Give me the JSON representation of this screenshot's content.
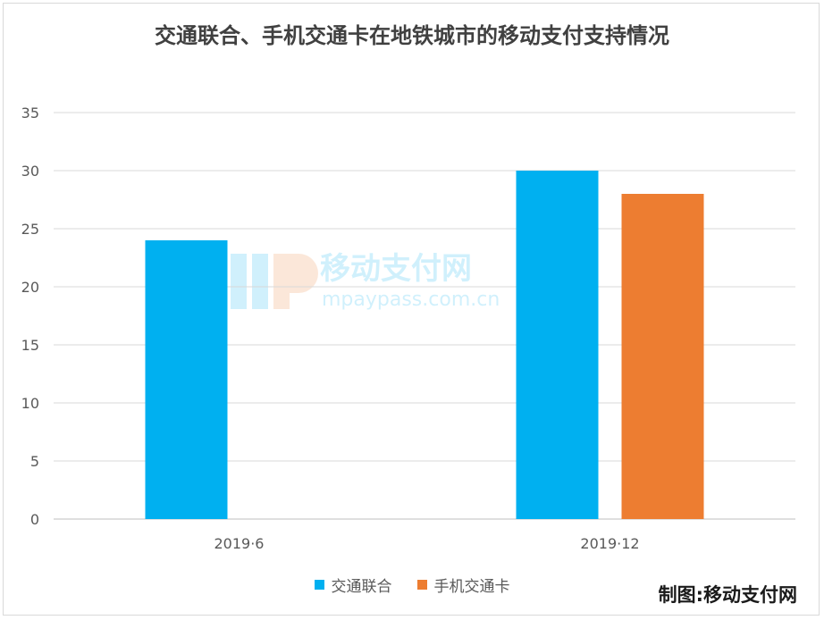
{
  "chart_data": {
    "type": "bar",
    "title": "交通联合、手机交通卡在地铁城市的移动支付支持情况",
    "categories": [
      "2019·6",
      "2019·12"
    ],
    "series": [
      {
        "name": "交通联合",
        "values": [
          24,
          30
        ],
        "color": "#00b0f0"
      },
      {
        "name": "手机交通卡",
        "values": [
          0,
          28
        ],
        "color": "#ed7d31"
      }
    ],
    "ylim": [
      0,
      35
    ],
    "yticks": [
      0,
      5,
      10,
      15,
      20,
      25,
      30,
      35
    ],
    "grid": true,
    "legend_position": "bottom",
    "xlabel": "",
    "ylabel": ""
  },
  "watermark": {
    "name": "移动支付网",
    "url": "mpaypass.com.cn"
  },
  "credit": "制图:移动支付网"
}
